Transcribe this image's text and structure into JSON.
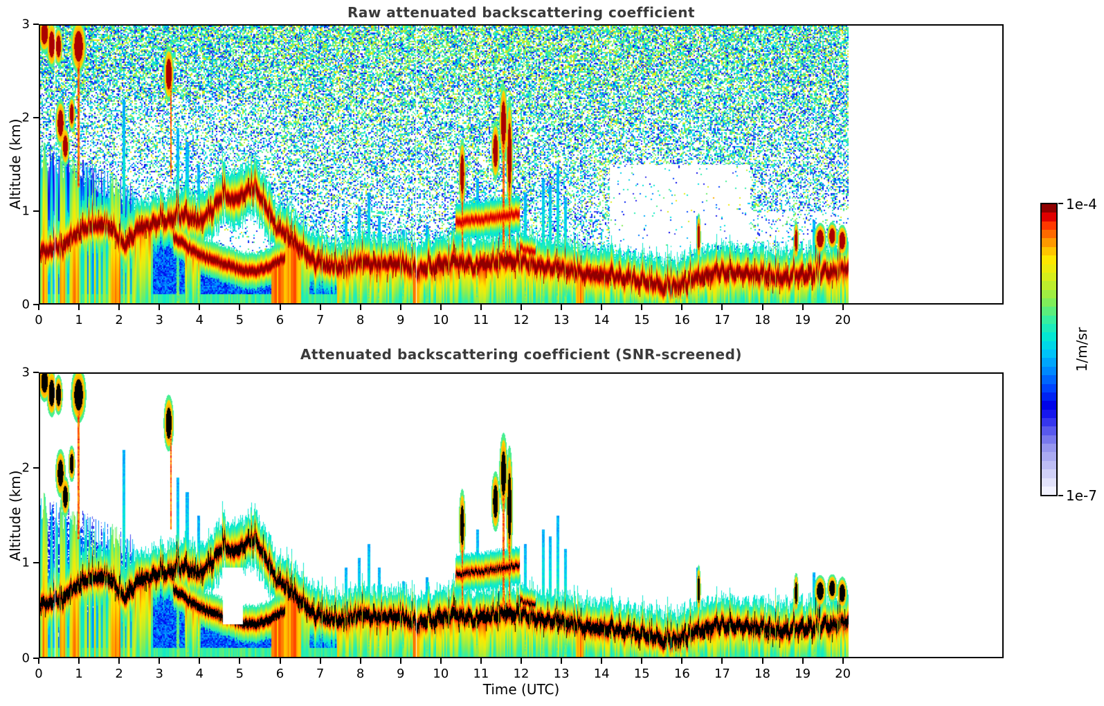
{
  "panels": [
    {
      "title": "Raw attenuated backscattering coefficient",
      "ylabel": "Altitude (km)"
    },
    {
      "title": "Attenuated backscattering coefficient (SNR-screened)",
      "ylabel": "Altitude (km)",
      "xlabel": "Time (UTC)"
    }
  ],
  "axes": {
    "x": {
      "label": "Time (UTC)",
      "min": 0,
      "max": 24,
      "ticks": [
        0,
        1,
        2,
        3,
        4,
        5,
        6,
        7,
        8,
        9,
        10,
        11,
        12,
        13,
        14,
        15,
        16,
        17,
        18,
        19,
        20
      ]
    },
    "y": {
      "label": "Altitude (km)",
      "min": 0,
      "max": 3,
      "ticks": [
        0,
        1,
        2,
        3
      ]
    }
  },
  "colorbar": {
    "top_label": "1e-4",
    "bottom_label": "1e-7",
    "unit": "1/m/sr",
    "scale": "log",
    "steps": 34,
    "stops": [
      [
        0.0,
        "#f2f2ff"
      ],
      [
        0.05,
        "#d8d8fa"
      ],
      [
        0.1,
        "#b8b8f5"
      ],
      [
        0.15,
        "#9898f0"
      ],
      [
        0.2,
        "#6868ee"
      ],
      [
        0.26,
        "#2222ee"
      ],
      [
        0.3,
        "#0000e8"
      ],
      [
        0.36,
        "#0040ff"
      ],
      [
        0.43,
        "#0090ff"
      ],
      [
        0.49,
        "#00c8f8"
      ],
      [
        0.54,
        "#00e8d8"
      ],
      [
        0.6,
        "#30f0a8"
      ],
      [
        0.66,
        "#78ee60"
      ],
      [
        0.72,
        "#b8ee30"
      ],
      [
        0.78,
        "#e8ee10"
      ],
      [
        0.82,
        "#ffe800"
      ],
      [
        0.86,
        "#ffb800"
      ],
      [
        0.9,
        "#ff7800"
      ],
      [
        0.94,
        "#ff3800"
      ],
      [
        0.97,
        "#e00000"
      ],
      [
        1.0,
        "#8f0000"
      ]
    ]
  },
  "chart_data": {
    "type": "heatmap",
    "quantity": "attenuated backscattering coefficient",
    "unit": "1/m/sr",
    "color_scale": {
      "type": "log",
      "min": 1e-07,
      "max": 0.0001
    },
    "x_range_hours": [
      0,
      24
    ],
    "data_end_hour": 20.15,
    "y_range_km": [
      0,
      3
    ],
    "boundary_layer_top_km_hourly": [
      1.6,
      1.0,
      0.85,
      1.05,
      1.15,
      1.35,
      0.85,
      0.55,
      0.6,
      0.55,
      0.6,
      1.1,
      0.6,
      0.5,
      0.42,
      0.32,
      0.42,
      0.45,
      0.4,
      0.42,
      0.5
    ],
    "features": {
      "main_band": [
        [
          0,
          0.55
        ],
        [
          0.5,
          0.6
        ],
        [
          0.9,
          0.75
        ],
        [
          1.3,
          0.85
        ],
        [
          1.8,
          0.8
        ],
        [
          2.1,
          0.62
        ],
        [
          2.4,
          0.8
        ],
        [
          2.8,
          0.86
        ],
        [
          3.2,
          0.9
        ],
        [
          3.6,
          0.95
        ],
        [
          4.0,
          0.88
        ],
        [
          4.3,
          1.02
        ],
        [
          4.6,
          1.18
        ],
        [
          4.8,
          1.08
        ],
        [
          5.1,
          1.22
        ],
        [
          5.35,
          1.24
        ],
        [
          5.6,
          1.05
        ],
        [
          5.9,
          0.82
        ],
        [
          6.2,
          0.72
        ],
        [
          6.5,
          0.58
        ],
        [
          6.8,
          0.45
        ],
        [
          7.2,
          0.4
        ],
        [
          7.6,
          0.38
        ],
        [
          8.0,
          0.46
        ],
        [
          8.4,
          0.42
        ],
        [
          8.8,
          0.44
        ],
        [
          9.2,
          0.38
        ],
        [
          9.6,
          0.36
        ],
        [
          10.0,
          0.42
        ],
        [
          10.4,
          0.44
        ],
        [
          10.8,
          0.4
        ],
        [
          11.2,
          0.42
        ],
        [
          11.6,
          0.46
        ],
        [
          12.0,
          0.44
        ],
        [
          12.4,
          0.4
        ],
        [
          12.8,
          0.38
        ],
        [
          13.2,
          0.36
        ],
        [
          13.6,
          0.32
        ],
        [
          14.0,
          0.3
        ],
        [
          14.5,
          0.28
        ],
        [
          15.0,
          0.24
        ],
        [
          15.5,
          0.17
        ],
        [
          16.0,
          0.2
        ],
        [
          16.4,
          0.28
        ],
        [
          16.8,
          0.33
        ],
        [
          17.2,
          0.34
        ],
        [
          17.6,
          0.32
        ],
        [
          18.0,
          0.3
        ],
        [
          18.5,
          0.28
        ],
        [
          19.0,
          0.3
        ],
        [
          19.5,
          0.33
        ],
        [
          20.15,
          0.38
        ]
      ],
      "lower_band": [
        [
          3.3,
          0.72
        ],
        [
          3.7,
          0.6
        ],
        [
          4.1,
          0.5
        ],
        [
          4.6,
          0.42
        ],
        [
          5.0,
          0.36
        ],
        [
          5.4,
          0.34
        ],
        [
          5.7,
          0.4
        ],
        [
          6.1,
          0.5
        ]
      ],
      "elevated_bands": [
        {
          "pts": [
            [
              10.35,
              0.88
            ],
            [
              11.2,
              0.92
            ],
            [
              11.95,
              0.98
            ]
          ],
          "hw": 0.08
        },
        {
          "pts": [
            [
              11.95,
              0.6
            ],
            [
              12.35,
              0.55
            ]
          ],
          "hw": 0.06
        }
      ],
      "clouds": [
        {
          "t": 0.1,
          "h": 2.92,
          "rt": 0.07,
          "rh": 0.1
        },
        {
          "t": 0.28,
          "h": 2.8,
          "rt": 0.06,
          "rh": 0.12
        },
        {
          "t": 0.45,
          "h": 2.78,
          "rt": 0.05,
          "rh": 0.1
        },
        {
          "t": 0.95,
          "h": 2.78,
          "rt": 0.09,
          "rh": 0.14
        },
        {
          "t": 0.5,
          "h": 1.95,
          "rt": 0.06,
          "rh": 0.12
        },
        {
          "t": 0.62,
          "h": 1.7,
          "rt": 0.05,
          "rh": 0.1
        },
        {
          "t": 0.78,
          "h": 2.05,
          "rt": 0.04,
          "rh": 0.09
        },
        {
          "t": 3.2,
          "h": 2.48,
          "rt": 0.06,
          "rh": 0.14
        },
        {
          "t": 10.52,
          "h": 1.4,
          "rt": 0.04,
          "rh": 0.18
        },
        {
          "t": 11.35,
          "h": 1.65,
          "rt": 0.05,
          "rh": 0.15
        },
        {
          "t": 11.55,
          "h": 1.95,
          "rt": 0.05,
          "rh": 0.2
        },
        {
          "t": 11.7,
          "h": 1.6,
          "rt": 0.04,
          "rh": 0.3
        },
        {
          "t": 16.42,
          "h": 0.72,
          "rt": 0.025,
          "rh": 0.12
        },
        {
          "t": 18.85,
          "h": 0.68,
          "rt": 0.03,
          "rh": 0.1
        },
        {
          "t": 19.45,
          "h": 0.7,
          "rt": 0.07,
          "rh": 0.08
        },
        {
          "t": 19.75,
          "h": 0.73,
          "rt": 0.06,
          "rh": 0.07
        },
        {
          "t": 20.0,
          "h": 0.68,
          "rt": 0.06,
          "rh": 0.08
        }
      ],
      "virga_streaks": [
        {
          "t": 0.95,
          "h0": 1.25,
          "h1": 2.7
        },
        {
          "t": 3.25,
          "h0": 1.35,
          "h1": 2.4
        },
        {
          "t": 10.52,
          "h0": 0.5,
          "h1": 1.3
        },
        {
          "t": 11.55,
          "h0": 0.55,
          "h1": 1.85
        },
        {
          "t": 11.7,
          "h0": 0.5,
          "h1": 1.9
        }
      ],
      "cyan_plumes": [
        {
          "t": 2.08,
          "h": 2.2
        },
        {
          "t": 3.42,
          "h": 1.9
        },
        {
          "t": 3.66,
          "h": 1.75
        },
        {
          "t": 3.95,
          "h": 1.5
        },
        {
          "t": 7.62,
          "h": 0.95
        },
        {
          "t": 7.95,
          "h": 1.05
        },
        {
          "t": 8.2,
          "h": 1.2
        },
        {
          "t": 8.45,
          "h": 0.95
        },
        {
          "t": 9.05,
          "h": 0.8
        },
        {
          "t": 9.65,
          "h": 0.85
        },
        {
          "t": 10.9,
          "h": 1.35
        },
        {
          "t": 12.1,
          "h": 1.2
        },
        {
          "t": 12.55,
          "h": 1.35
        },
        {
          "t": 12.72,
          "h": 1.28
        },
        {
          "t": 12.9,
          "h": 1.5
        },
        {
          "t": 13.1,
          "h": 1.15
        },
        {
          "t": 16.4,
          "h": 0.95
        },
        {
          "t": 19.3,
          "h": 0.9
        }
      ],
      "left_mass": {
        "t_end": 2.35,
        "top0": 1.62,
        "slope": 0.2,
        "orange_columns": [
          [
            0.05,
            0.18
          ],
          [
            0.5,
            0.62
          ],
          [
            0.78,
            0.95
          ],
          [
            1.75,
            2.0
          ]
        ]
      },
      "orange_columns_below_band": [
        [
          5.7,
          6.5
        ],
        [
          7.3,
          7.45
        ],
        [
          9.3,
          9.45
        ],
        [
          13.35,
          13.55
        ]
      ],
      "blue_below_regions": [
        [
          2.8,
          3.6,
          0.0,
          0.8
        ],
        [
          4.0,
          5.75,
          0.0,
          0.95
        ],
        [
          6.7,
          7.4,
          0.0,
          0.45
        ],
        [
          10.9,
          12.35,
          0.45,
          0.95
        ],
        [
          15.2,
          16.2,
          0.05,
          0.3
        ]
      ],
      "lavender_patch": {
        "t0": 4.55,
        "t1": 5.05,
        "h0": 0.35,
        "h1": 0.95
      },
      "white_gap_lines_hours": [
        0.36,
        9.38
      ],
      "noise_white_regions": [
        {
          "t0": 3.4,
          "t1": 4.9,
          "z0": 1.05,
          "z1": 1.95,
          "s": 0.07
        },
        {
          "t0": 14.2,
          "t1": 17.7,
          "z0": 0.3,
          "z1": 1.5,
          "s": 0.06
        },
        {
          "t0": 17.7,
          "t1": 20.15,
          "z0": 0.3,
          "z1": 1.0,
          "s": 0.35
        }
      ]
    }
  }
}
